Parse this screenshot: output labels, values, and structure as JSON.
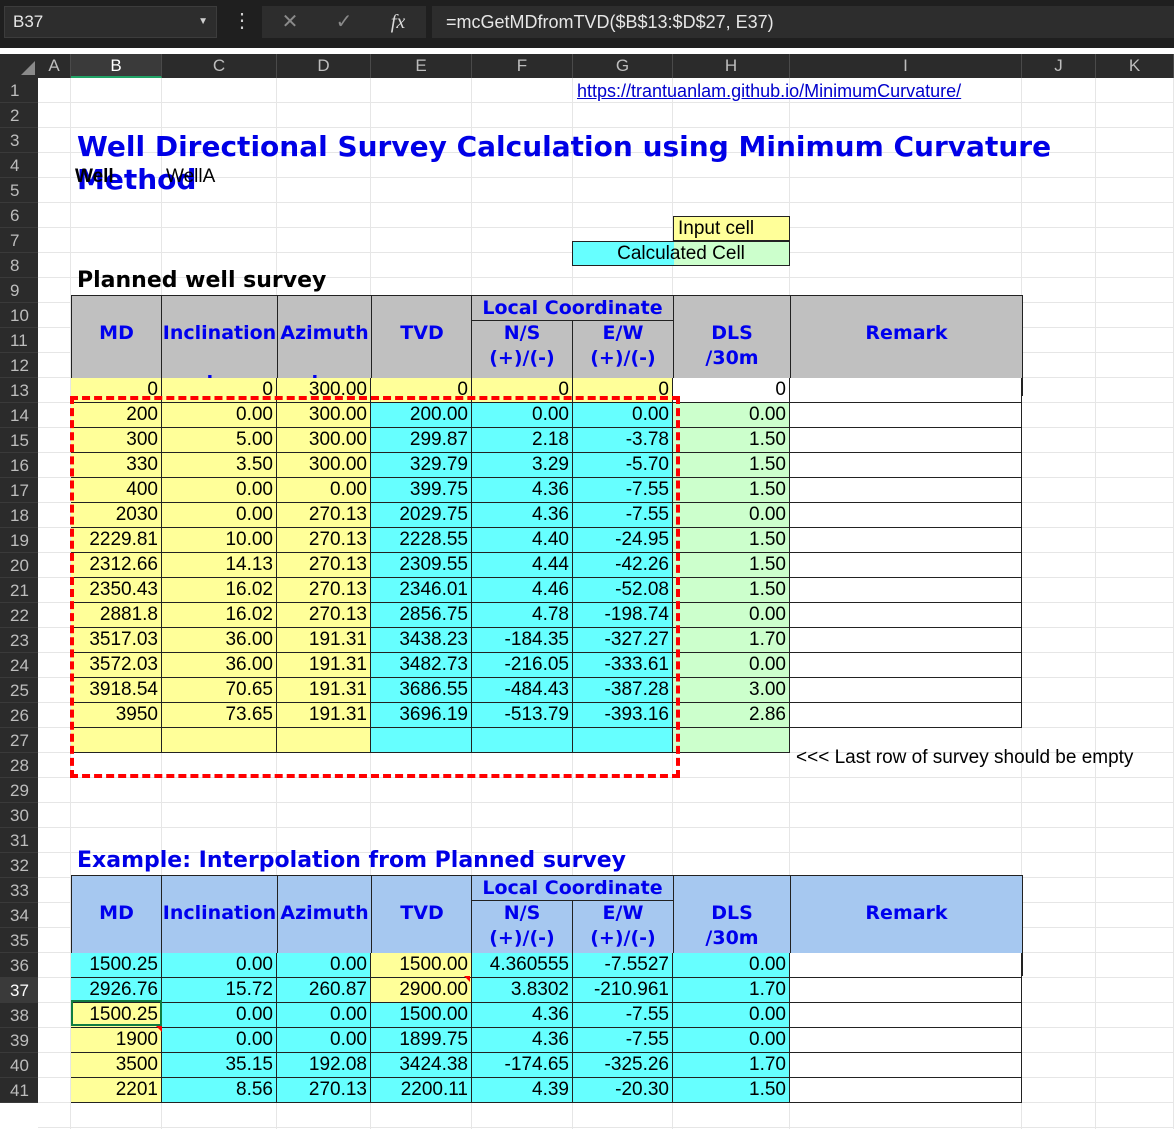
{
  "formula_bar": {
    "name_box": "B37",
    "cancel_icon": "✕",
    "enter_icon": "✓",
    "fx_label": "fx",
    "formula": "=mcGetMDfromTVD($B$13:$D$27, E37)"
  },
  "columns": [
    "A",
    "B",
    "C",
    "D",
    "E",
    "F",
    "G",
    "H",
    "I",
    "J",
    "K"
  ],
  "rows": [
    "1",
    "2",
    "3",
    "4",
    "5",
    "6",
    "7",
    "8",
    "9",
    "10",
    "11",
    "12",
    "13",
    "14",
    "15",
    "16",
    "17",
    "18",
    "19",
    "20",
    "21",
    "22",
    "23",
    "24",
    "25",
    "26",
    "27",
    "28",
    "29",
    "30",
    "31",
    "32",
    "33",
    "34",
    "35",
    "36",
    "37",
    "38",
    "39",
    "40",
    "41"
  ],
  "sheet": {
    "link": "https://trantuanlam.github.io/MinimumCurvature/",
    "title": "Well Directional Survey Calculation using Minimum Curvature Method",
    "well_label": "Well",
    "well_value": "WellA",
    "legend_input": "Input cell",
    "legend_calc": "Calculated Cell",
    "planned_title": "Planned well survey",
    "example_title": "Example: Interpolation from Planned survey",
    "note": "<<< Last row of survey should be empty"
  },
  "header": {
    "md": "MD",
    "inc": "Inclination",
    "azi": "Azimuth",
    "tvd": "TVD",
    "local": "Local Coordinate",
    "ns": "N/S",
    "ew": "E/W",
    "pm": "(+)/(-)",
    "dls": "DLS",
    "dls2": "/30m",
    "remark": "Remark",
    "u_m": "m",
    "u_deg": "deg"
  },
  "planned_rows": [
    [
      "0",
      "0",
      "300.00",
      "0",
      "0",
      "0",
      "0"
    ],
    [
      "200",
      "0.00",
      "300.00",
      "200.00",
      "0.00",
      "0.00",
      "0.00"
    ],
    [
      "300",
      "5.00",
      "300.00",
      "299.87",
      "2.18",
      "-3.78",
      "1.50"
    ],
    [
      "330",
      "3.50",
      "300.00",
      "329.79",
      "3.29",
      "-5.70",
      "1.50"
    ],
    [
      "400",
      "0.00",
      "0.00",
      "399.75",
      "4.36",
      "-7.55",
      "1.50"
    ],
    [
      "2030",
      "0.00",
      "270.13",
      "2029.75",
      "4.36",
      "-7.55",
      "0.00"
    ],
    [
      "2229.81",
      "10.00",
      "270.13",
      "2228.55",
      "4.40",
      "-24.95",
      "1.50"
    ],
    [
      "2312.66",
      "14.13",
      "270.13",
      "2309.55",
      "4.44",
      "-42.26",
      "1.50"
    ],
    [
      "2350.43",
      "16.02",
      "270.13",
      "2346.01",
      "4.46",
      "-52.08",
      "1.50"
    ],
    [
      "2881.8",
      "16.02",
      "270.13",
      "2856.75",
      "4.78",
      "-198.74",
      "0.00"
    ],
    [
      "3517.03",
      "36.00",
      "191.31",
      "3438.23",
      "-184.35",
      "-327.27",
      "1.70"
    ],
    [
      "3572.03",
      "36.00",
      "191.31",
      "3482.73",
      "-216.05",
      "-333.61",
      "0.00"
    ],
    [
      "3918.54",
      "70.65",
      "191.31",
      "3686.55",
      "-484.43",
      "-387.28",
      "3.00"
    ],
    [
      "3950",
      "73.65",
      "191.31",
      "3696.19",
      "-513.79",
      "-393.16",
      "2.86"
    ],
    [
      "",
      "",
      "",
      "",
      "",
      "",
      ""
    ]
  ],
  "example_rows": [
    [
      "1500.25",
      "0.00",
      "0.00",
      "1500.00",
      "4.360555",
      "-7.5527",
      "0.00"
    ],
    [
      "2926.76",
      "15.72",
      "260.87",
      "2900.00",
      "3.8302",
      "-210.961",
      "1.70"
    ],
    [
      "1500.25",
      "0.00",
      "0.00",
      "1500.00",
      "4.36",
      "-7.55",
      "0.00"
    ],
    [
      "1900",
      "0.00",
      "0.00",
      "1899.75",
      "4.36",
      "-7.55",
      "0.00"
    ],
    [
      "3500",
      "35.15",
      "192.08",
      "3424.38",
      "-174.65",
      "-325.26",
      "1.70"
    ],
    [
      "2201",
      "8.56",
      "270.13",
      "2200.11",
      "4.39",
      "-20.30",
      "1.50"
    ]
  ],
  "colors": {
    "input": "#ffff99",
    "calculated": "#66ffff",
    "dls": "#ccffcc",
    "header_grey": "#c0c0c0",
    "header_blue": "#a6c8f0",
    "title_blue": "#0000e6",
    "dash_red": "#ff0000"
  }
}
